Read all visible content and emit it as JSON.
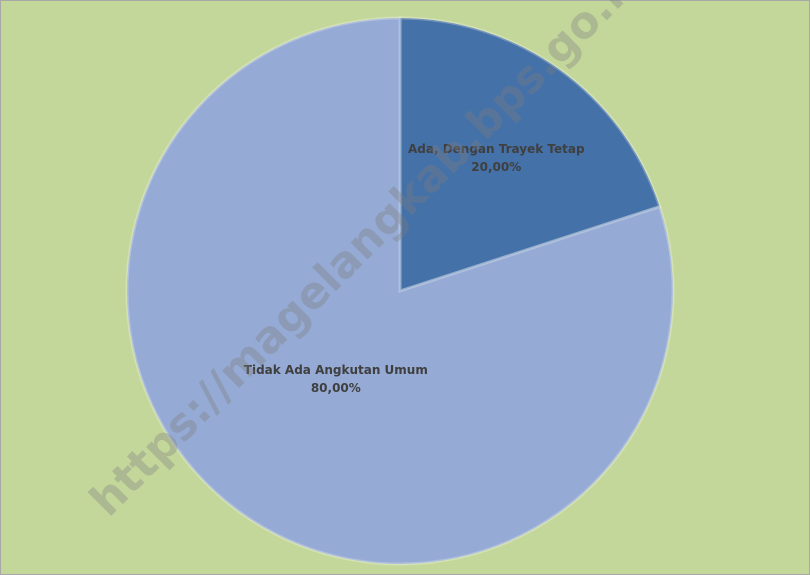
{
  "chart_data": {
    "type": "pie",
    "categories": [
      "Ada, Dengan Trayek Tetap",
      "Tidak Ada Angkutan Umum"
    ],
    "values": [
      20,
      80
    ],
    "value_labels": [
      "20,00%",
      "80,00%"
    ],
    "colors": [
      "#4471a8",
      "#95aad4"
    ],
    "background": "#c4d79b",
    "watermark": "https://magelangkab.bps.go.id"
  }
}
